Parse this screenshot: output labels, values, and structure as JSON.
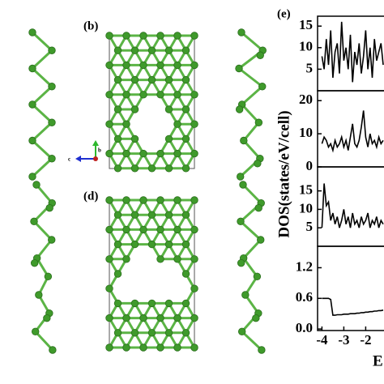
{
  "figure": {
    "label_b": "(b)",
    "label_d": "(d)",
    "label_e": "(e)",
    "axis_b": "b",
    "axis_c": "c",
    "ylabel": "DOS(states/eV/cell)",
    "xlabel": "E"
  },
  "chart_data": [
    {
      "type": "line",
      "color": "#000000",
      "xlim": [
        -4.2,
        -1.2
      ],
      "ylim": [
        0,
        17.3
      ],
      "yticks": [
        5,
        10,
        15
      ],
      "x": [
        -4.0,
        -3.9,
        -3.8,
        -3.7,
        -3.6,
        -3.5,
        -3.4,
        -3.3,
        -3.2,
        -3.1,
        -3.0,
        -2.9,
        -2.8,
        -2.7,
        -2.6,
        -2.5,
        -2.4,
        -2.3,
        -2.2,
        -2.1,
        -2.0,
        -1.9,
        -1.8,
        -1.7,
        -1.6,
        -1.5,
        -1.4,
        -1.3,
        -1.2
      ],
      "values": [
        8,
        5,
        12,
        6,
        14,
        3,
        9,
        11,
        4,
        16,
        7,
        10,
        5,
        13,
        2,
        9,
        6,
        11,
        4,
        8,
        14,
        5,
        10,
        3,
        12,
        7,
        9,
        11,
        6
      ]
    },
    {
      "type": "line",
      "color": "#000000",
      "xlim": [
        -4.2,
        -1.2
      ],
      "ylim": [
        0,
        23
      ],
      "yticks": [
        0,
        10,
        20
      ],
      "x": [
        -4.0,
        -3.9,
        -3.8,
        -3.7,
        -3.6,
        -3.5,
        -3.4,
        -3.3,
        -3.2,
        -3.1,
        -3.0,
        -2.9,
        -2.8,
        -2.7,
        -2.6,
        -2.5,
        -2.4,
        -2.3,
        -2.2,
        -2.1,
        -2.0,
        -1.9,
        -1.8,
        -1.7,
        -1.6,
        -1.5,
        -1.4,
        -1.3,
        -1.2
      ],
      "values": [
        7,
        9,
        8,
        6,
        7,
        5,
        8,
        6,
        7,
        9,
        6,
        8,
        5,
        9,
        13,
        7,
        6,
        8,
        12,
        17,
        9,
        6,
        10,
        7,
        8,
        6,
        9,
        7,
        8
      ]
    },
    {
      "type": "line",
      "color": "#000000",
      "xlim": [
        -4.2,
        -1.2
      ],
      "ylim": [
        0,
        21.5
      ],
      "yticks": [
        5,
        10,
        15
      ],
      "x": [
        -4.0,
        -3.9,
        -3.8,
        -3.7,
        -3.6,
        -3.5,
        -3.4,
        -3.3,
        -3.2,
        -3.1,
        -3.0,
        -2.9,
        -2.8,
        -2.7,
        -2.6,
        -2.5,
        -2.4,
        -2.3,
        -2.2,
        -2.1,
        -2.0,
        -1.9,
        -1.8,
        -1.7,
        -1.6,
        -1.5,
        -1.4,
        -1.3,
        -1.2
      ],
      "values": [
        5,
        17,
        11,
        12,
        7,
        9,
        6,
        8,
        5,
        7,
        10,
        6,
        8,
        5,
        9,
        6,
        7,
        5,
        8,
        6,
        7,
        9,
        5,
        7,
        6,
        8,
        5,
        7,
        6
      ]
    },
    {
      "type": "line",
      "color": "#000000",
      "xlim": [
        -4.2,
        -1.2
      ],
      "ylim": [
        -0.03,
        1.62
      ],
      "yticks": [
        {
          "value": 0,
          "label": "0.0"
        },
        0.6,
        1.2
      ],
      "xticks": [
        -4,
        -3,
        -2
      ],
      "x": [
        -4.0,
        -3.9,
        -3.8,
        -3.7,
        -3.6,
        -3.5,
        -3.4,
        -3.3,
        -3.2,
        -3.1,
        -3.0,
        -2.9,
        -2.8,
        -2.7,
        -2.6,
        -2.5,
        -2.4,
        -2.3,
        -2.2,
        -2.1,
        -2.0,
        -1.9,
        -1.8,
        -1.7,
        -1.6,
        -1.5,
        -1.4,
        -1.3,
        -1.2
      ],
      "values": [
        0.6,
        0.6,
        0.6,
        0.6,
        0.58,
        0.27,
        0.27,
        0.28,
        0.28,
        0.28,
        0.29,
        0.29,
        0.29,
        0.3,
        0.3,
        0.3,
        0.31,
        0.31,
        0.32,
        0.32,
        0.33,
        0.33,
        0.34,
        0.34,
        0.35,
        0.35,
        0.36,
        0.36,
        0.37
      ]
    }
  ]
}
